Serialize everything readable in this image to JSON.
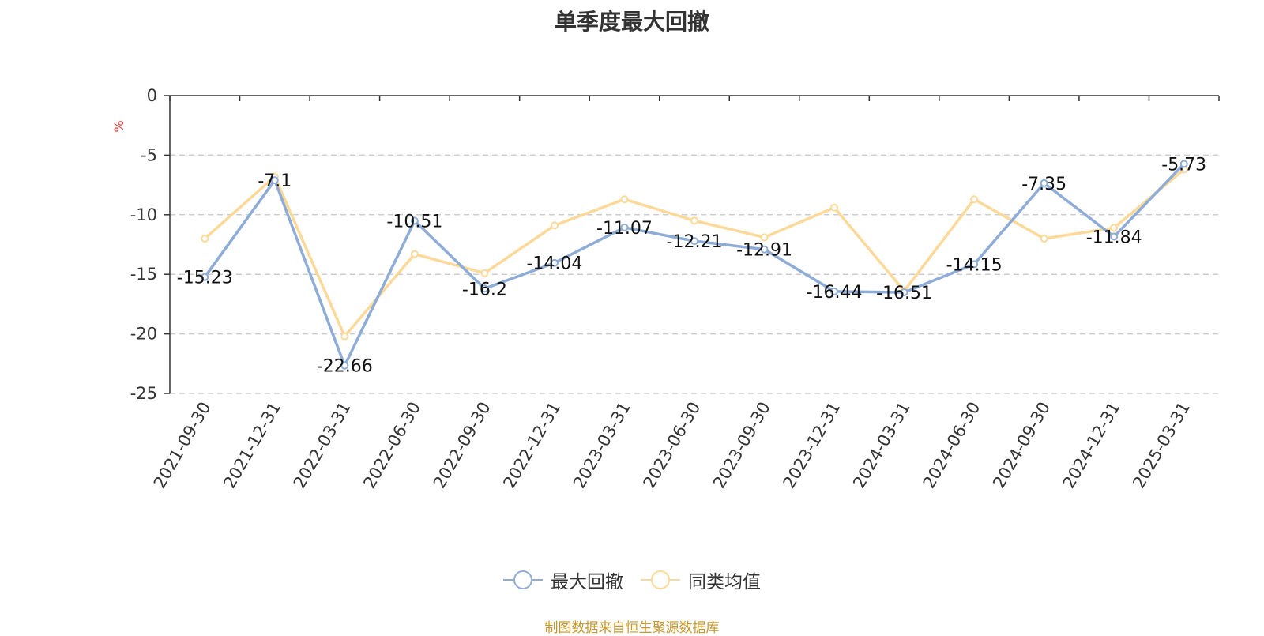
{
  "chart_data": {
    "type": "line",
    "title": "单季度最大回撤",
    "ylabel": "%",
    "xlabel": "",
    "x": [
      "2021-09-30",
      "2021-12-31",
      "2022-03-31",
      "2022-06-30",
      "2022-09-30",
      "2022-12-31",
      "2023-03-31",
      "2023-06-30",
      "2023-09-30",
      "2023-12-31",
      "2024-03-31",
      "2024-06-30",
      "2024-09-30",
      "2024-12-31",
      "2025-03-31"
    ],
    "ylim": [
      -25,
      0
    ],
    "yticks": [
      "0",
      "-5",
      "-10",
      "-15",
      "-20",
      "-25"
    ],
    "grid": true,
    "legend_position": "bottom",
    "series": [
      {
        "name": "最大回撤",
        "color": "#8eacd8",
        "values": [
          -15.23,
          -7.1,
          -22.66,
          -10.51,
          -16.2,
          -14.04,
          -11.07,
          -12.21,
          -12.91,
          -16.44,
          -16.51,
          -14.15,
          -7.35,
          -11.84,
          -5.73
        ],
        "labels": [
          "-15.23",
          "-7.1",
          "-22.66",
          "-10.51",
          "-16.2",
          "-14.04",
          "-11.07",
          "-12.21",
          "-12.91",
          "-16.44",
          "-16.51",
          "-14.15",
          "-7.35",
          "-11.84",
          "-5.73"
        ]
      },
      {
        "name": "同类均值",
        "color": "#fcd998",
        "values": [
          -12.0,
          -6.8,
          -20.2,
          -13.3,
          -14.9,
          -10.9,
          -8.7,
          -10.5,
          -11.9,
          -9.4,
          -16.4,
          -8.7,
          -12.0,
          -11.1,
          -6.2
        ]
      }
    ]
  },
  "source_note": "制图数据来自恒生聚源数据库",
  "colors": {
    "source_note": "#c8962a",
    "unit_label": "#e53935",
    "axis": "#333333",
    "grid": "#cccccc"
  }
}
